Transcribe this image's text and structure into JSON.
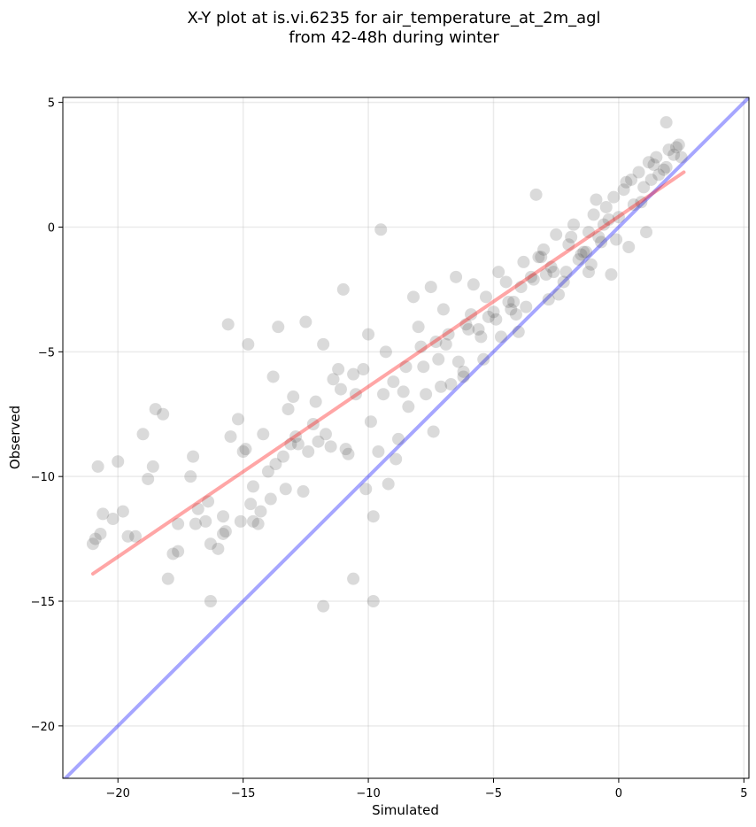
{
  "chart_data": {
    "type": "scatter",
    "title_line1": "X-Y plot at is.vi.6235 for air_temperature_at_2m_agl",
    "title_line2": "from 42-48h during winter",
    "xlabel": "Simulated",
    "ylabel": "Observed",
    "xlim": [
      -22.2,
      5.2
    ],
    "ylim": [
      -22.1,
      5.2
    ],
    "xticks": [
      -20,
      -15,
      -10,
      -5,
      0,
      5
    ],
    "yticks": [
      -20,
      -15,
      -10,
      -5,
      0,
      5
    ],
    "xtick_labels": [
      "−20",
      "−15",
      "−10",
      "−5",
      "0",
      "5"
    ],
    "ytick_labels": [
      "−20",
      "−15",
      "−10",
      "−5",
      "0",
      "5"
    ],
    "grid": true,
    "marker_color": "#444444",
    "reference_line": {
      "x": [
        -22.2,
        5.2
      ],
      "y": [
        -22.2,
        5.2
      ],
      "color": "#0000ff"
    },
    "fit_line": {
      "x": [
        -21.0,
        2.6
      ],
      "y": [
        -13.9,
        2.2
      ],
      "color": "#ff0000"
    },
    "points": {
      "x": [
        -21.0,
        -20.8,
        -20.9,
        -20.6,
        -20.7,
        -20.2,
        -20.0,
        -19.8,
        -19.6,
        -19.3,
        -19.0,
        -18.8,
        -18.6,
        -18.5,
        -18.0,
        -17.8,
        -17.6,
        -17.0,
        -17.1,
        -16.8,
        -16.5,
        -16.3,
        -16.0,
        -15.8,
        -15.6,
        -15.5,
        -15.2,
        -15.0,
        -14.8,
        -14.6,
        -14.4,
        -14.2,
        -14.0,
        -13.8,
        -13.6,
        -13.4,
        -13.2,
        -13.0,
        -12.8,
        -12.5,
        -12.2,
        -12.0,
        -11.8,
        -11.5,
        -11.2,
        -11.0,
        -10.8,
        -10.5,
        -10.2,
        -10.0,
        -9.8,
        -9.5,
        -9.2,
        -9.0,
        -8.8,
        -8.5,
        -8.2,
        -8.0,
        -7.8,
        -7.5,
        -7.2,
        -7.0,
        -6.8,
        -6.5,
        -6.2,
        -6.0,
        -5.8,
        -5.5,
        -5.2,
        -5.0,
        -4.8,
        -4.5,
        -4.2,
        -4.0,
        -3.8,
        -3.5,
        -3.2,
        -3.0,
        -2.8,
        -2.5,
        -2.2,
        -2.0,
        -1.8,
        -1.5,
        -1.2,
        -1.0,
        -0.8,
        -0.5,
        -0.2,
        0.0,
        0.2,
        0.5,
        0.8,
        1.0,
        1.2,
        1.5,
        1.8,
        2.0,
        2.2,
        2.5,
        -17.6,
        -16.4,
        -15.8,
        -14.9,
        -14.3,
        -13.7,
        -12.9,
        -12.1,
        -11.4,
        -10.6,
        -9.9,
        -9.3,
        -8.6,
        -7.9,
        -7.3,
        -6.7,
        -6.1,
        -5.4,
        -4.7,
        -4.1,
        -3.4,
        -2.7,
        -2.1,
        -1.4,
        -0.7,
        -0.1,
        0.6,
        1.3,
        1.9,
        -16.9,
        -15.1,
        -13.3,
        -11.7,
        -10.1,
        -8.4,
        -6.9,
        -5.3,
        -3.7,
        -2.4,
        -1.1,
        0.4,
        1.6,
        -18.2,
        -14.6,
        -12.6,
        -10.9,
        -9.6,
        -7.7,
        -5.9,
        -4.4,
        -2.9,
        -1.6,
        -0.4,
        0.9,
        2.3,
        -11.8,
        -9.8,
        -10.6,
        -6.2,
        -3.3,
        -1.2,
        -0.6,
        1.9,
        -16.3,
        -15.7,
        -13.9,
        -12.4,
        -9.4,
        -7.4,
        -6.4,
        -4.9,
        -3.9,
        -2.6,
        -1.3,
        -0.3,
        1.1,
        -14.7,
        -13.1,
        -11.1,
        -8.9,
        -7.1,
        -5.6,
        -4.3,
        -3.1,
        -1.9,
        -0.9,
        0.3,
        1.4,
        2.4
      ],
      "y": [
        -12.7,
        -9.6,
        -12.5,
        -11.5,
        -12.3,
        -11.7,
        -9.4,
        -11.4,
        -12.4,
        -12.4,
        -8.3,
        -10.1,
        -9.6,
        -7.3,
        -14.1,
        -13.1,
        -13.0,
        -9.2,
        -10.0,
        -11.3,
        -11.8,
        -15.0,
        -12.9,
        -11.6,
        -3.9,
        -8.4,
        -7.7,
        -9.0,
        -4.7,
        -10.4,
        -11.9,
        -8.3,
        -9.8,
        -6.0,
        -4.0,
        -9.2,
        -7.3,
        -6.8,
        -8.7,
        -3.8,
        -7.9,
        -8.6,
        -4.7,
        -8.8,
        -5.7,
        -2.5,
        -9.1,
        -6.7,
        -5.7,
        -4.3,
        -11.6,
        -0.1,
        -10.3,
        -6.2,
        -8.5,
        -5.6,
        -2.8,
        -4.0,
        -5.6,
        -2.4,
        -5.3,
        -3.3,
        -4.3,
        -2.0,
        -5.8,
        -4.1,
        -2.3,
        -4.4,
        -3.6,
        -3.4,
        -1.8,
        -2.2,
        -3.0,
        -4.2,
        -1.4,
        -2.0,
        -1.2,
        -0.9,
        -2.9,
        -0.3,
        -2.2,
        -0.7,
        0.1,
        -1.1,
        -0.2,
        0.5,
        -0.4,
        0.8,
        1.2,
        0.4,
        1.5,
        1.9,
        2.2,
        1.6,
        2.6,
        2.8,
        2.3,
        3.1,
        2.9,
        2.8,
        -11.9,
        -11.0,
        -12.3,
        -8.9,
        -11.4,
        -9.5,
        -8.4,
        -7.0,
        -6.1,
        -5.9,
        -7.8,
        -5.0,
        -6.6,
        -4.8,
        -4.6,
        -6.3,
        -3.9,
        -5.3,
        -4.4,
        -3.5,
        -2.1,
        -1.6,
        -1.8,
        -1.0,
        -0.6,
        -0.5,
        0.9,
        1.9,
        2.4,
        -11.9,
        -11.8,
        -10.5,
        -8.3,
        -10.5,
        -7.2,
        -4.7,
        -2.8,
        -3.2,
        -2.7,
        -1.5,
        -0.8,
        2.1,
        -7.5,
        -11.8,
        -10.6,
        -8.9,
        -9.0,
        -6.7,
        -3.5,
        -3.0,
        -1.9,
        -1.3,
        0.3,
        1.0,
        3.2,
        -15.2,
        -15.0,
        -14.1,
        -6.0,
        1.3,
        -1.8,
        0.1,
        4.2,
        -12.7,
        -12.2,
        -10.9,
        -9.0,
        -6.7,
        -8.2,
        -5.4,
        -3.7,
        -2.4,
        -1.8,
        -1.0,
        -1.9,
        -0.2,
        -11.1,
        -8.7,
        -6.5,
        -9.3,
        -6.4,
        -4.1,
        -3.3,
        -1.2,
        -0.4,
        1.1,
        1.8,
        2.5,
        3.3
      ]
    }
  }
}
